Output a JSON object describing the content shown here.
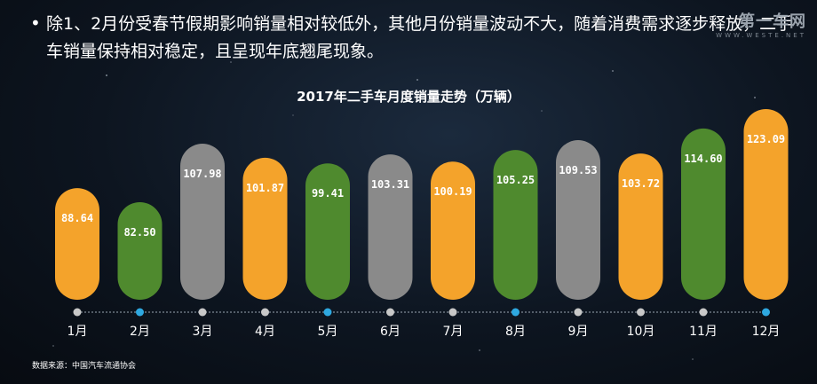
{
  "slide": {
    "bullet": "除1、2月份受春节假期影响销量相对较低外，其他月份销量波动不大，随着消费需求逐步释放，二手车销量保持相对稳定，且呈现年底翘尾现象。",
    "source": "数据来源：中国汽车流通协会",
    "logo_text": "第一车网",
    "logo_sub": "WWW.WESTE.NET"
  },
  "colors": {
    "orange": "#F4A32B",
    "green": "#4F8A2E",
    "gray": "#8A8A8A",
    "dot_gray": "#C8C8C8",
    "dot_blue": "#2EA8E0"
  },
  "chart_data": {
    "type": "bar",
    "title": "2017年二手车月度销量走势（万辆）",
    "categories": [
      "1月",
      "2月",
      "3月",
      "4月",
      "5月",
      "6月",
      "7月",
      "8月",
      "9月",
      "10月",
      "11月",
      "12月"
    ],
    "values": [
      88.64,
      82.5,
      107.98,
      101.87,
      99.41,
      103.31,
      100.19,
      105.25,
      109.53,
      103.72,
      114.6,
      123.09
    ],
    "labels": [
      "88.64",
      "82.50",
      "107.98",
      "101.87",
      "99.41",
      "103.31",
      "100.19",
      "105.25",
      "109.53",
      "103.72",
      "114.60",
      "123.09"
    ],
    "bar_colors": [
      "orange",
      "green",
      "gray",
      "orange",
      "green",
      "gray",
      "orange",
      "green",
      "gray",
      "orange",
      "green",
      "orange"
    ],
    "dot_colors": [
      "dot_gray",
      "dot_blue",
      "dot_gray",
      "dot_gray",
      "dot_blue",
      "dot_gray",
      "dot_gray",
      "dot_blue",
      "dot_gray",
      "dot_gray",
      "dot_gray",
      "dot_blue"
    ],
    "ylim": [
      40,
      125
    ],
    "xlabel": "",
    "ylabel": ""
  }
}
